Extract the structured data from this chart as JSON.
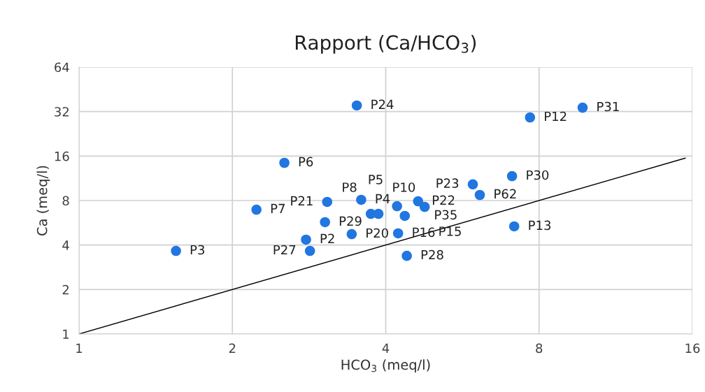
{
  "chart_data": {
    "type": "scatter",
    "title": "Rapport (Ca/HCO$_{3}$)",
    "xlabel": "HCO$_{3}$ (meq/l)",
    "ylabel": "Ca (meq/l)",
    "log": "xy",
    "grid": true,
    "marker": "circle",
    "xlim": [
      1,
      16
    ],
    "xticks": [
      1,
      2,
      4,
      8,
      16
    ],
    "ylim": [
      1,
      64
    ],
    "yticks": [
      1,
      2,
      4,
      8,
      16,
      32,
      64
    ],
    "series": [
      {
        "color": "#2176e0",
        "x": [
          1.55,
          2.23,
          2.53,
          3.51,
          7.68,
          9.74,
          7.08,
          5.93,
          6.12,
          7.15,
          3.07,
          3.58,
          3.04,
          2.79,
          2.84,
          3.43,
          3.74,
          3.87,
          4.23,
          4.4,
          4.21,
          4.63,
          4.77,
          4.36
        ],
        "values": [
          3.65,
          6.94,
          14.4,
          35.2,
          29.2,
          34.0,
          11.7,
          10.3,
          8.73,
          5.35,
          7.83,
          8.09,
          5.71,
          4.35,
          3.65,
          4.74,
          6.5,
          6.5,
          4.8,
          3.38,
          7.33,
          7.91,
          7.25,
          6.3
        ]
      },
      {
        "type": "line",
        "color": "#000000",
        "marker": "none",
        "x": [
          1,
          15.5
        ],
        "values": [
          1,
          15.5
        ]
      }
    ],
    "annotations": [
      {
        "text": "P3",
        "x": 1.55,
        "y": 3.65
      },
      {
        "text": "P7",
        "x": 2.23,
        "y": 6.94
      },
      {
        "text": "P6",
        "x": 2.53,
        "y": 14.4
      },
      {
        "text": "P24",
        "x": 3.51,
        "y": 35.2
      },
      {
        "text": "P12",
        "x": 7.68,
        "y": 29.2
      },
      {
        "text": "P31",
        "x": 9.74,
        "y": 34.0
      },
      {
        "text": "P30",
        "x": 7.08,
        "y": 11.7
      },
      {
        "text": "P23",
        "x": 5.93,
        "y": 10.3
      },
      {
        "text": "P62",
        "x": 6.12,
        "y": 8.73
      },
      {
        "text": "P13",
        "x": 7.15,
        "y": 5.35
      },
      {
        "text": "P21",
        "x": 3.07,
        "y": 7.83
      },
      {
        "text": "P4",
        "x": 3.58,
        "y": 8.09
      },
      {
        "text": "P29",
        "x": 3.04,
        "y": 5.71
      },
      {
        "text": "P2",
        "x": 2.79,
        "y": 4.35
      },
      {
        "text": "P27",
        "x": 2.84,
        "y": 3.65
      },
      {
        "text": "P20",
        "x": 3.43,
        "y": 4.74
      },
      {
        "text": "P8",
        "x": 3.74,
        "y": 6.5
      },
      {
        "text": "P10",
        "x": 3.87,
        "y": 6.5
      },
      {
        "text": "P16",
        "x": 4.23,
        "y": 4.8
      },
      {
        "text": "P28",
        "x": 4.4,
        "y": 3.38
      },
      {
        "text": "P5",
        "x": 4.21,
        "y": 7.33
      },
      {
        "text": "P22",
        "x": 4.63,
        "y": 7.91
      },
      {
        "text": "P15",
        "x": 4.77,
        "y": 7.25
      },
      {
        "text": "P35",
        "x": 4.36,
        "y": 6.3
      }
    ]
  }
}
